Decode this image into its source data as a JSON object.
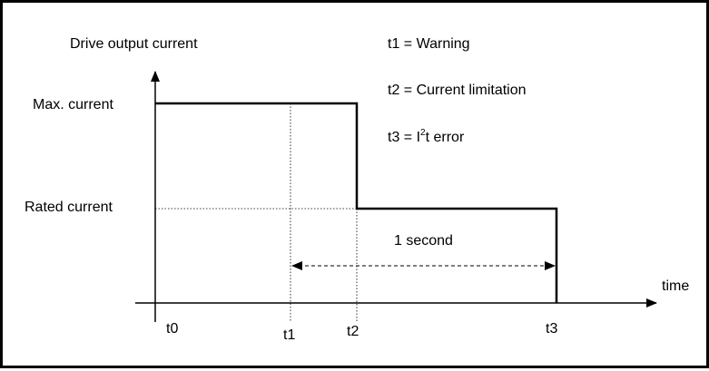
{
  "diagram": {
    "y_axis_label": "Drive output current",
    "x_axis_label": "time",
    "levels": {
      "max": "Max. current",
      "rated": "Rated current"
    },
    "time_labels": [
      "t0",
      "t1",
      "t2",
      "t3"
    ],
    "legend": {
      "t1": "t1 = Warning",
      "t2": "t2 = Current limitation",
      "t3_prefix": "t3 = I",
      "t3_sup": "2",
      "t3_suffix": "t error"
    },
    "duration_label": "1 second"
  }
}
